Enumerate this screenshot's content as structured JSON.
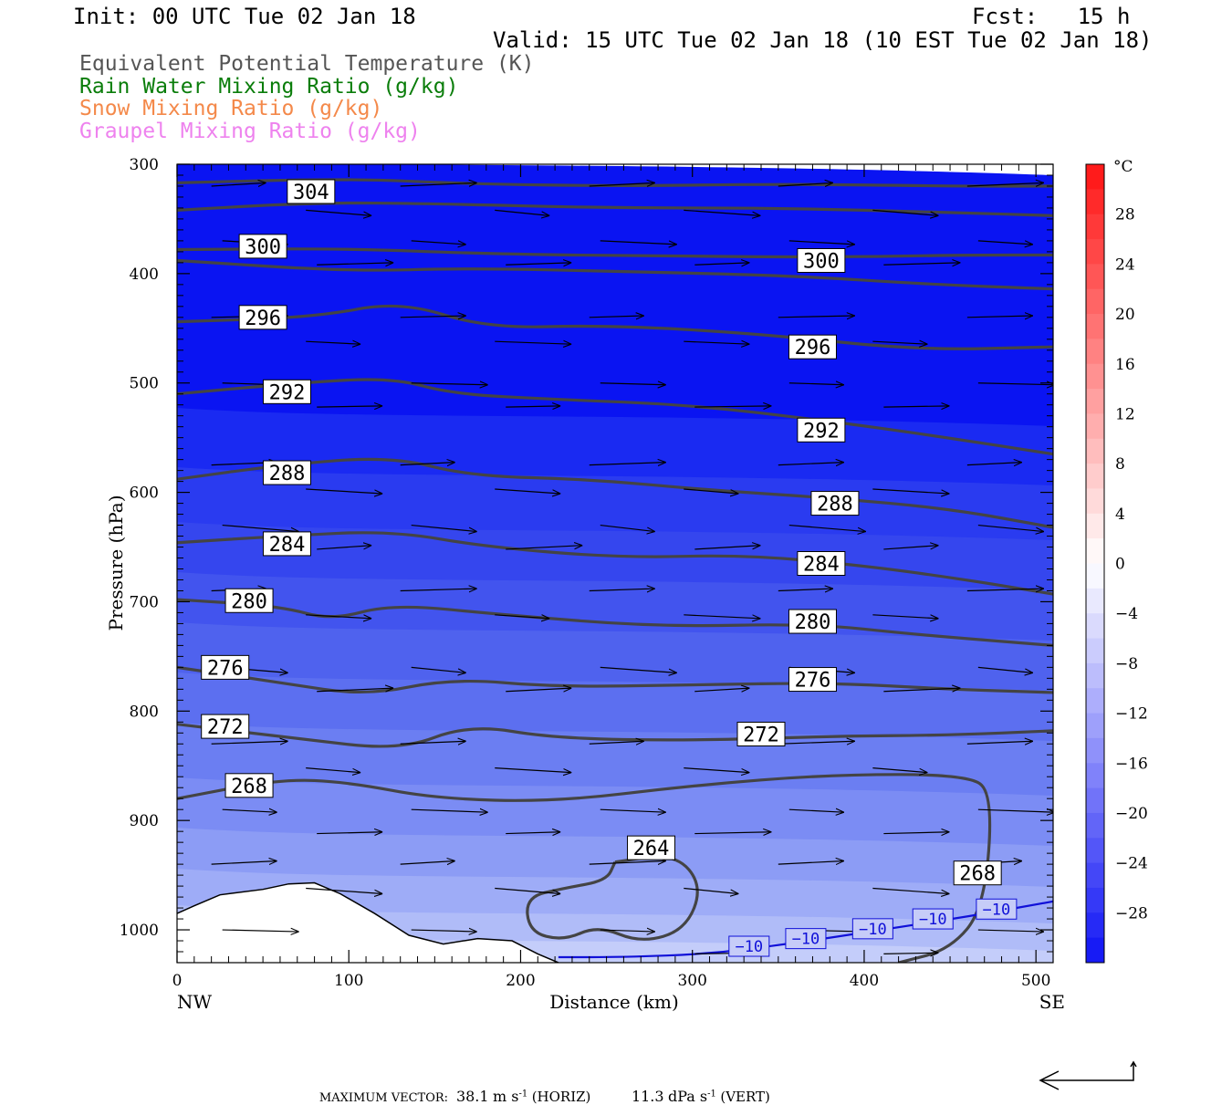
{
  "header": {
    "init": "Init: 00 UTC Tue 02 Jan 18",
    "fcst": "Fcst:   15 h",
    "valid": "Valid: 15 UTC Tue 02 Jan 18 (10 EST Tue 02 Jan 18)",
    "fields": [
      {
        "label": "Equivalent Potential Temperature (K)",
        "color": "#555555"
      },
      {
        "label": "Rain Water Mixing Ratio (g/kg)",
        "color": "#0a7d0a"
      },
      {
        "label": "Snow Mixing Ratio (g/kg)",
        "color": "#f4894a"
      },
      {
        "label": "Graupel Mixing Ratio (g/kg)",
        "color": "#ee82ee"
      }
    ]
  },
  "chart_data": {
    "type": "contour",
    "xlabel": "Distance (km)",
    "ylabel": "Pressure (hPa)",
    "xlim": [
      0,
      510
    ],
    "ylim": [
      1030,
      300
    ],
    "x_ticks": [
      0,
      100,
      200,
      300,
      400,
      500
    ],
    "y_ticks": [
      300,
      400,
      500,
      600,
      700,
      800,
      900,
      1000
    ],
    "x_end_labels": {
      "left": "NW",
      "right": "SE"
    },
    "colorbar": {
      "unit": "°C",
      "tick_labels": [
        "28",
        "24",
        "20",
        "16",
        "12",
        "8",
        "4",
        "0",
        "−4",
        "−8",
        "−12",
        "−16",
        "−20",
        "−24",
        "−28"
      ],
      "tick_values": [
        28,
        24,
        20,
        16,
        12,
        8,
        4,
        0,
        -4,
        -8,
        -12,
        -16,
        -20,
        -24,
        -28
      ],
      "range": [
        -32,
        32
      ]
    },
    "theta_e_labels": [
      {
        "text": "304",
        "x": 78,
        "p": 325
      },
      {
        "text": "300",
        "x": 50,
        "p": 375
      },
      {
        "text": "300",
        "x": 375,
        "p": 388
      },
      {
        "text": "296",
        "x": 50,
        "p": 440
      },
      {
        "text": "296",
        "x": 370,
        "p": 467
      },
      {
        "text": "292",
        "x": 64,
        "p": 508
      },
      {
        "text": "292",
        "x": 375,
        "p": 543
      },
      {
        "text": "288",
        "x": 64,
        "p": 582
      },
      {
        "text": "288",
        "x": 383,
        "p": 610
      },
      {
        "text": "284",
        "x": 64,
        "p": 647
      },
      {
        "text": "284",
        "x": 375,
        "p": 665
      },
      {
        "text": "280",
        "x": 42,
        "p": 699
      },
      {
        "text": "280",
        "x": 370,
        "p": 718
      },
      {
        "text": "276",
        "x": 28,
        "p": 760
      },
      {
        "text": "276",
        "x": 370,
        "p": 771
      },
      {
        "text": "272",
        "x": 28,
        "p": 814
      },
      {
        "text": "272",
        "x": 340,
        "p": 821
      },
      {
        "text": "268",
        "x": 42,
        "p": 868
      },
      {
        "text": "268",
        "x": 466,
        "p": 948
      },
      {
        "text": "264",
        "x": 276,
        "p": 925
      }
    ],
    "temperature_labels": [
      {
        "text": "−10",
        "x": 333,
        "p": 1015
      },
      {
        "text": "−10",
        "x": 366,
        "p": 1008
      },
      {
        "text": "−10",
        "x": 405,
        "p": 999
      },
      {
        "text": "−10",
        "x": 440,
        "p": 990
      },
      {
        "text": "−10",
        "x": 477,
        "p": 981
      }
    ],
    "max_vector": {
      "label": "MAXIMUM VECTOR:",
      "horiz_value": "38.1",
      "horiz_unit": "m s",
      "horiz_exp": "-1",
      "horiz_tag": "(HORIZ)",
      "vert_value": "11.3",
      "vert_unit": "dPa s",
      "vert_exp": "-1",
      "vert_tag": "(VERT)"
    },
    "colors": {
      "theta_e": "#444444",
      "isotherm": "#1010d8",
      "terrain": "#ffffff"
    }
  }
}
